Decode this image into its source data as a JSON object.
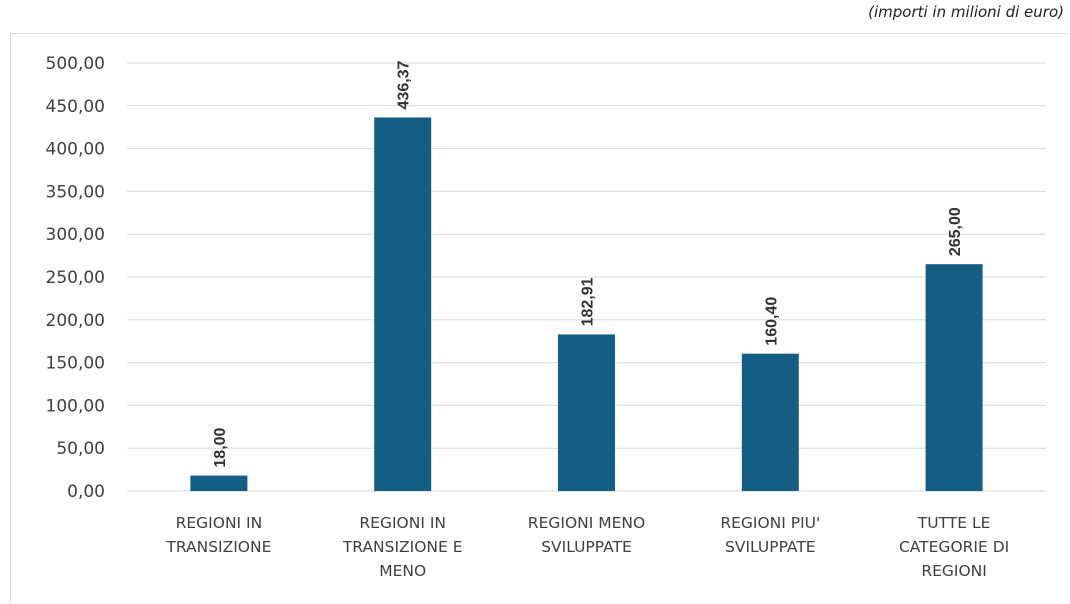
{
  "note": "(importi in milioni di euro)",
  "chart_data": {
    "type": "bar",
    "categories": [
      [
        "REGIONI IN",
        "TRANSIZIONE"
      ],
      [
        "REGIONI IN",
        "TRANSIZIONE E",
        "MENO"
      ],
      [
        "REGIONI MENO",
        "SVILUPPATE"
      ],
      [
        "REGIONI PIU'",
        "SVILUPPATE"
      ],
      [
        "TUTTE LE",
        "CATEGORIE DI",
        "REGIONI"
      ]
    ],
    "values": [
      18.0,
      436.37,
      182.91,
      160.4,
      265.0
    ],
    "data_labels": [
      "18,00",
      "436,37",
      "182,91",
      "160,40",
      "265,00"
    ],
    "yticks": [
      "0,00",
      "50,00",
      "100,00",
      "150,00",
      "200,00",
      "250,00",
      "300,00",
      "350,00",
      "400,00",
      "450,00",
      "500,00"
    ],
    "ylim": [
      0,
      500
    ],
    "grid": true,
    "bar_color": "#155e83",
    "grid_color": "#d9d9d9"
  }
}
